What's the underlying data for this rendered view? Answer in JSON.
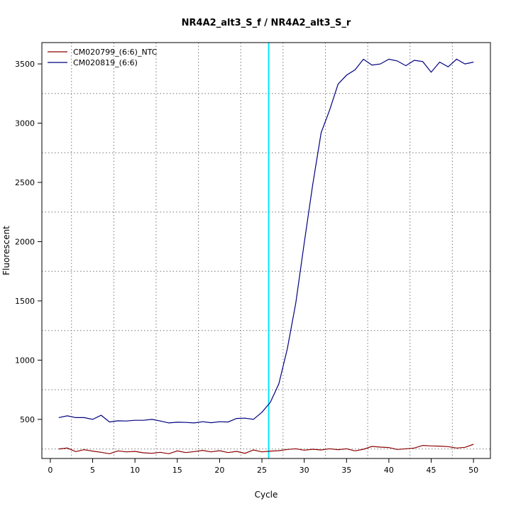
{
  "chart_data": {
    "type": "line",
    "title": "NR4A2_alt3_S_f / NR4A2_alt3_S_r",
    "xlabel": "Cycle",
    "ylabel": "Fluorescent",
    "xlim": [
      -1,
      52
    ],
    "ylim": [
      170,
      3680
    ],
    "x_ticks": [
      0,
      5,
      10,
      15,
      20,
      25,
      30,
      35,
      40,
      45,
      50
    ],
    "y_ticks": [
      500,
      1000,
      1500,
      2000,
      2500,
      3000,
      3500
    ],
    "grid": true,
    "legend_position": "top-left",
    "threshold_cycle": 25.8,
    "threshold_color": "#00e5ff",
    "x": [
      1,
      2,
      3,
      4,
      5,
      6,
      7,
      8,
      9,
      10,
      11,
      12,
      13,
      14,
      15,
      16,
      17,
      18,
      19,
      20,
      21,
      22,
      23,
      24,
      25,
      26,
      27,
      28,
      29,
      30,
      31,
      32,
      33,
      34,
      35,
      36,
      37,
      38,
      39,
      40,
      41,
      42,
      43,
      44,
      45,
      46,
      47,
      48,
      49,
      50
    ],
    "series": [
      {
        "name": "CM020799_(6:6)_NTC",
        "color": "#8b0000",
        "values": [
          250,
          258,
          228,
          244,
          232,
          222,
          210,
          234,
          226,
          230,
          218,
          214,
          222,
          210,
          234,
          220,
          228,
          238,
          226,
          236,
          220,
          230,
          214,
          242,
          226,
          232,
          236,
          246,
          252,
          240,
          248,
          242,
          252,
          244,
          252,
          234,
          248,
          272,
          266,
          262,
          246,
          252,
          258,
          280,
          276,
          274,
          270,
          258,
          264,
          290
        ]
      },
      {
        "name": "CM020819_(6:6)",
        "color": "#000080",
        "values": [
          515,
          530,
          515,
          515,
          500,
          535,
          478,
          488,
          486,
          492,
          492,
          500,
          486,
          470,
          476,
          474,
          470,
          480,
          472,
          480,
          478,
          508,
          510,
          500,
          560,
          645,
          800,
          1095,
          1480,
          1990,
          2480,
          2920,
          3110,
          3330,
          3405,
          3450,
          3540,
          3490,
          3500,
          3540,
          3525,
          3485,
          3530,
          3520,
          3430,
          3515,
          3475,
          3540,
          3500,
          3515
        ]
      }
    ]
  }
}
